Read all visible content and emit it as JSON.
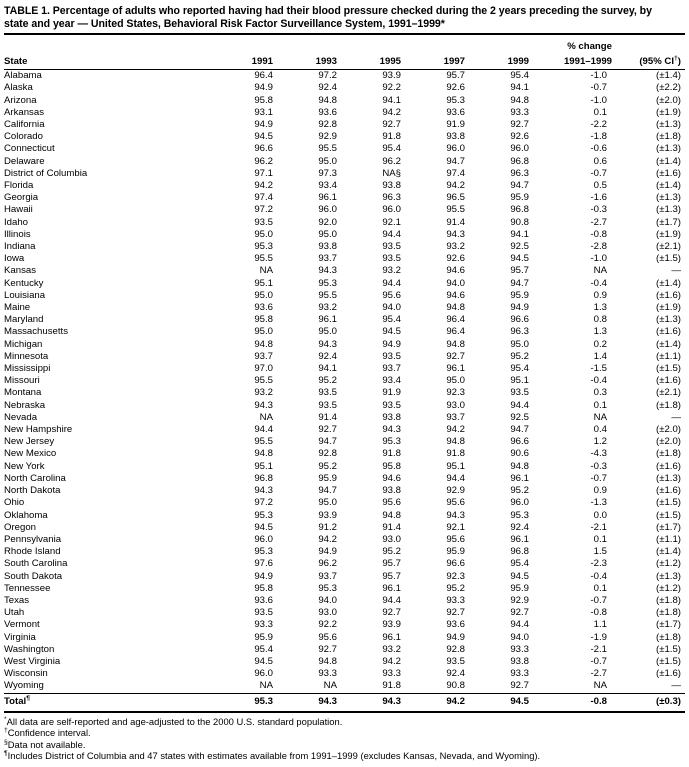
{
  "page": {
    "background": "#ffffff",
    "text_color": "#000000"
  },
  "title_lines": [
    "TABLE 1. Percentage of adults who reported having had their blood pressure checked during the 2 years preceding the survey, by",
    "state and year — United States, Behavioral Risk Factor Surveillance System, 1991–1999*"
  ],
  "table": {
    "header": {
      "state": "State",
      "years": [
        "1991",
        "1993",
        "1995",
        "1997",
        "1999"
      ],
      "change_line1": "% change",
      "change_line2": "1991–1999",
      "ci_pre": "(95% CI",
      "ci_marker": "†",
      "ci_post": ")"
    },
    "rows": [
      {
        "state": "Alabama",
        "v": [
          "96.4",
          "97.2",
          "93.9",
          "95.7",
          "95.4",
          "-1.0",
          "(±1.4)"
        ]
      },
      {
        "state": "Alaska",
        "v": [
          "94.9",
          "92.4",
          "92.2",
          "92.6",
          "94.1",
          "-0.7",
          "(±2.2)"
        ]
      },
      {
        "state": "Arizona",
        "v": [
          "95.8",
          "94.8",
          "94.1",
          "95.3",
          "94.8",
          "-1.0",
          "(±2.0)"
        ]
      },
      {
        "state": "Arkansas",
        "v": [
          "93.1",
          "93.6",
          "94.2",
          "93.6",
          "93.3",
          "0.1",
          "(±1.9)"
        ]
      },
      {
        "state": "California",
        "v": [
          "94.9",
          "92.8",
          "92.7",
          "91.9",
          "92.7",
          "-2.2",
          "(±1.3)"
        ]
      },
      {
        "state": "Colorado",
        "v": [
          "94.5",
          "92.9",
          "91.8",
          "93.8",
          "92.6",
          "-1.8",
          "(±1.8)"
        ]
      },
      {
        "state": "Connecticut",
        "v": [
          "96.6",
          "95.5",
          "95.4",
          "96.0",
          "96.0",
          "-0.6",
          "(±1.3)"
        ]
      },
      {
        "state": "Delaware",
        "v": [
          "96.2",
          "95.0",
          "96.2",
          "94.7",
          "96.8",
          "0.6",
          "(±1.4)"
        ]
      },
      {
        "state": "District of Columbia",
        "v": [
          "97.1",
          "97.3",
          "NA§",
          "97.4",
          "96.3",
          "-0.7",
          "(±1.6)"
        ]
      },
      {
        "state": "Florida",
        "v": [
          "94.2",
          "93.4",
          "93.8",
          "94.2",
          "94.7",
          "0.5",
          "(±1.4)"
        ]
      },
      {
        "state": "Georgia",
        "v": [
          "97.4",
          "96.1",
          "96.3",
          "96.5",
          "95.9",
          "-1.6",
          "(±1.3)"
        ]
      },
      {
        "state": "Hawaii",
        "v": [
          "97.2",
          "96.0",
          "96.0",
          "95.5",
          "96.8",
          "-0.3",
          "(±1.3)"
        ]
      },
      {
        "state": "Idaho",
        "v": [
          "93.5",
          "92.0",
          "92.1",
          "91.4",
          "90.8",
          "-2.7",
          "(±1.7)"
        ]
      },
      {
        "state": "Illinois",
        "v": [
          "95.0",
          "95.0",
          "94.4",
          "94.3",
          "94.1",
          "-0.8",
          "(±1.9)"
        ]
      },
      {
        "state": "Indiana",
        "v": [
          "95.3",
          "93.8",
          "93.5",
          "93.2",
          "92.5",
          "-2.8",
          "(±2.1)"
        ]
      },
      {
        "state": "Iowa",
        "v": [
          "95.5",
          "93.7",
          "93.5",
          "92.6",
          "94.5",
          "-1.0",
          "(±1.5)"
        ]
      },
      {
        "state": "Kansas",
        "v": [
          "NA",
          "94.3",
          "93.2",
          "94.6",
          "95.7",
          "NA",
          "—"
        ]
      },
      {
        "state": "Kentucky",
        "v": [
          "95.1",
          "95.3",
          "94.4",
          "94.0",
          "94.7",
          "-0.4",
          "(±1.4)"
        ]
      },
      {
        "state": "Louisiana",
        "v": [
          "95.0",
          "95.5",
          "95.6",
          "94.6",
          "95.9",
          "0.9",
          "(±1.6)"
        ]
      },
      {
        "state": "Maine",
        "v": [
          "93.6",
          "93.2",
          "94.0",
          "94.8",
          "94.9",
          "1.3",
          "(±1.9)"
        ]
      },
      {
        "state": "Maryland",
        "v": [
          "95.8",
          "96.1",
          "95.4",
          "96.4",
          "96.6",
          "0.8",
          "(±1.3)"
        ]
      },
      {
        "state": "Massachusetts",
        "v": [
          "95.0",
          "95.0",
          "94.5",
          "96.4",
          "96.3",
          "1.3",
          "(±1.6)"
        ]
      },
      {
        "state": "Michigan",
        "v": [
          "94.8",
          "94.3",
          "94.9",
          "94.8",
          "95.0",
          "0.2",
          "(±1.4)"
        ]
      },
      {
        "state": "Minnesota",
        "v": [
          "93.7",
          "92.4",
          "93.5",
          "92.7",
          "95.2",
          "1.4",
          "(±1.1)"
        ]
      },
      {
        "state": "Mississippi",
        "v": [
          "97.0",
          "94.1",
          "93.7",
          "96.1",
          "95.4",
          "-1.5",
          "(±1.5)"
        ]
      },
      {
        "state": "Missouri",
        "v": [
          "95.5",
          "95.2",
          "93.4",
          "95.0",
          "95.1",
          "-0.4",
          "(±1.6)"
        ]
      },
      {
        "state": "Montana",
        "v": [
          "93.2",
          "93.5",
          "91.9",
          "92.3",
          "93.5",
          "0.3",
          "(±2.1)"
        ]
      },
      {
        "state": "Nebraska",
        "v": [
          "94.3",
          "93.5",
          "93.5",
          "93.0",
          "94.4",
          "0.1",
          "(±1.8)"
        ]
      },
      {
        "state": "Nevada",
        "v": [
          "NA",
          "91.4",
          "93.8",
          "93.7",
          "92.5",
          "NA",
          "—"
        ]
      },
      {
        "state": "New Hampshire",
        "v": [
          "94.4",
          "92.7",
          "94.3",
          "94.2",
          "94.7",
          "0.4",
          "(±2.0)"
        ]
      },
      {
        "state": "New Jersey",
        "v": [
          "95.5",
          "94.7",
          "95.3",
          "94.8",
          "96.6",
          "1.2",
          "(±2.0)"
        ]
      },
      {
        "state": "New Mexico",
        "v": [
          "94.8",
          "92.8",
          "91.8",
          "91.8",
          "90.6",
          "-4.3",
          "(±1.8)"
        ]
      },
      {
        "state": "New York",
        "v": [
          "95.1",
          "95.2",
          "95.8",
          "95.1",
          "94.8",
          "-0.3",
          "(±1.6)"
        ]
      },
      {
        "state": "North Carolina",
        "v": [
          "96.8",
          "95.9",
          "94.6",
          "94.4",
          "96.1",
          "-0.7",
          "(±1.3)"
        ]
      },
      {
        "state": "North Dakota",
        "v": [
          "94.3",
          "94.7",
          "93.8",
          "92.9",
          "95.2",
          "0.9",
          "(±1.6)"
        ]
      },
      {
        "state": "Ohio",
        "v": [
          "97.2",
          "95.0",
          "95.6",
          "95.6",
          "96.0",
          "-1.3",
          "(±1.5)"
        ]
      },
      {
        "state": "Oklahoma",
        "v": [
          "95.3",
          "93.9",
          "94.8",
          "94.3",
          "95.3",
          "0.0",
          "(±1.5)"
        ]
      },
      {
        "state": "Oregon",
        "v": [
          "94.5",
          "91.2",
          "91.4",
          "92.1",
          "92.4",
          "-2.1",
          "(±1.7)"
        ]
      },
      {
        "state": "Pennsylvania",
        "v": [
          "96.0",
          "94.2",
          "93.0",
          "95.6",
          "96.1",
          "0.1",
          "(±1.1)"
        ]
      },
      {
        "state": "Rhode Island",
        "v": [
          "95.3",
          "94.9",
          "95.2",
          "95.9",
          "96.8",
          "1.5",
          "(±1.4)"
        ]
      },
      {
        "state": "South Carolina",
        "v": [
          "97.6",
          "96.2",
          "95.7",
          "96.6",
          "95.4",
          "-2.3",
          "(±1.2)"
        ]
      },
      {
        "state": "South Dakota",
        "v": [
          "94.9",
          "93.7",
          "95.7",
          "92.3",
          "94.5",
          "-0.4",
          "(±1.3)"
        ]
      },
      {
        "state": "Tennessee",
        "v": [
          "95.8",
          "95.3",
          "96.1",
          "95.2",
          "95.9",
          "0.1",
          "(±1.2)"
        ]
      },
      {
        "state": "Texas",
        "v": [
          "93.6",
          "94.0",
          "94.4",
          "93.3",
          "92.9",
          "-0.7",
          "(±1.8)"
        ]
      },
      {
        "state": "Utah",
        "v": [
          "93.5",
          "93.0",
          "92.7",
          "92.7",
          "92.7",
          "-0.8",
          "(±1.8)"
        ]
      },
      {
        "state": "Vermont",
        "v": [
          "93.3",
          "92.2",
          "93.9",
          "93.6",
          "94.4",
          "1.1",
          "(±1.7)"
        ]
      },
      {
        "state": "Virginia",
        "v": [
          "95.9",
          "95.6",
          "96.1",
          "94.9",
          "94.0",
          "-1.9",
          "(±1.8)"
        ]
      },
      {
        "state": "Washington",
        "v": [
          "95.4",
          "92.7",
          "93.2",
          "92.8",
          "93.3",
          "-2.1",
          "(±1.5)"
        ]
      },
      {
        "state": "West Virginia",
        "v": [
          "94.5",
          "94.8",
          "94.2",
          "93.5",
          "93.8",
          "-0.7",
          "(±1.5)"
        ]
      },
      {
        "state": "Wisconsin",
        "v": [
          "96.0",
          "93.3",
          "93.3",
          "92.4",
          "93.3",
          "-2.7",
          "(±1.6)"
        ]
      },
      {
        "state": "Wyoming",
        "v": [
          "NA",
          "NA",
          "91.8",
          "90.8",
          "92.7",
          "NA",
          "—"
        ]
      }
    ],
    "total": {
      "label": "Total",
      "marker": "¶",
      "v": [
        "95.3",
        "94.3",
        "94.3",
        "94.2",
        "94.5",
        "-0.8",
        "(±0.3)"
      ]
    }
  },
  "footnotes": [
    {
      "marker": "*",
      "text": "All data are self-reported and age-adjusted to the 2000 U.S. standard population."
    },
    {
      "marker": "†",
      "text": "Confidence interval."
    },
    {
      "marker": "§",
      "text": "Data not available."
    },
    {
      "marker": "¶",
      "text": "Includes District of Columbia and 47 states with estimates available from 1991–1999 (excludes Kansas, Nevada, and Wyoming)."
    }
  ]
}
